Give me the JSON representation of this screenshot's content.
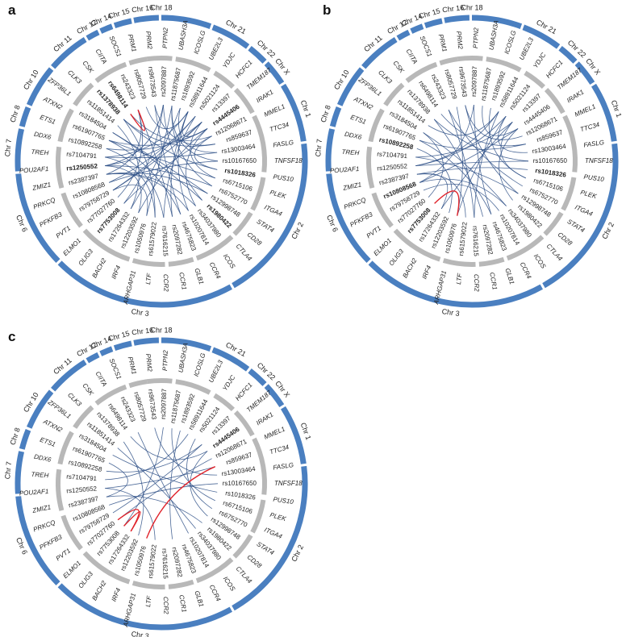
{
  "panels": [
    {
      "letter": "a",
      "bold_labels": [
        "rs6498114",
        "rs1378938",
        "rs1250552",
        "rs4445406",
        "rs1018326",
        "rs1980422",
        "rs7753008"
      ],
      "links": [
        [
          5,
          30
        ],
        [
          6,
          32
        ],
        [
          7,
          25
        ],
        [
          8,
          40
        ],
        [
          9,
          43
        ],
        [
          10,
          28
        ],
        [
          11,
          36
        ],
        [
          12,
          46
        ],
        [
          13,
          30
        ],
        [
          14,
          34
        ],
        [
          15,
          41
        ],
        [
          16,
          29
        ],
        [
          17,
          44
        ],
        [
          18,
          33
        ],
        [
          19,
          38
        ],
        [
          20,
          45
        ],
        [
          21,
          31
        ],
        [
          22,
          42
        ],
        [
          23,
          47
        ],
        [
          24,
          35
        ],
        [
          3,
          39
        ],
        [
          4,
          27
        ],
        [
          6,
          44
        ],
        [
          8,
          36
        ],
        [
          10,
          42
        ],
        [
          12,
          33
        ],
        [
          14,
          29
        ],
        [
          16,
          47
        ],
        [
          18,
          40
        ],
        [
          20,
          32
        ],
        [
          22,
          27
        ],
        [
          24,
          43
        ],
        [
          26,
          38
        ],
        [
          28,
          45
        ],
        [
          30,
          41
        ],
        [
          5,
          46
        ],
        [
          7,
          37
        ],
        [
          9,
          31
        ],
        [
          11,
          48
        ],
        [
          13,
          42
        ],
        [
          15,
          34
        ],
        [
          17,
          29
        ],
        [
          19,
          44
        ],
        [
          21,
          36
        ],
        [
          23,
          30
        ],
        [
          25,
          41
        ],
        [
          27,
          46
        ],
        [
          29,
          38
        ],
        [
          31,
          44
        ],
        [
          33,
          47
        ]
      ],
      "red_links": [
        [
          37,
          38
        ]
      ]
    },
    {
      "letter": "b",
      "bold_labels": [
        "rs10892258",
        "rs1018326",
        "rs10808568",
        "rs7753008"
      ],
      "links": [
        [
          5,
          31
        ],
        [
          6,
          28
        ],
        [
          7,
          40
        ],
        [
          8,
          33
        ],
        [
          9,
          45
        ],
        [
          10,
          36
        ],
        [
          11,
          29
        ],
        [
          12,
          43
        ],
        [
          13,
          38
        ],
        [
          14,
          31
        ],
        [
          15,
          47
        ],
        [
          16,
          34
        ],
        [
          17,
          27
        ],
        [
          18,
          41
        ],
        [
          19,
          36
        ],
        [
          20,
          44
        ],
        [
          21,
          29
        ],
        [
          22,
          39
        ],
        [
          23,
          32
        ],
        [
          24,
          46
        ],
        [
          3,
          35
        ],
        [
          4,
          30
        ],
        [
          6,
          42
        ],
        [
          8,
          37
        ],
        [
          10,
          30
        ],
        [
          12,
          46
        ],
        [
          14,
          40
        ],
        [
          16,
          28
        ],
        [
          18,
          33
        ],
        [
          20,
          38
        ],
        [
          22,
          45
        ],
        [
          24,
          29
        ],
        [
          26,
          34
        ],
        [
          28,
          41
        ],
        [
          30,
          44
        ]
      ],
      "red_links": [
        [
          22,
          25
        ]
      ]
    },
    {
      "letter": "c",
      "bold_labels": [
        "rs4445406"
      ],
      "links": [
        [
          5,
          32
        ],
        [
          7,
          26
        ],
        [
          9,
          40
        ],
        [
          11,
          34
        ],
        [
          13,
          45
        ],
        [
          15,
          29
        ],
        [
          17,
          38
        ],
        [
          19,
          43
        ],
        [
          21,
          30
        ],
        [
          23,
          36
        ],
        [
          25,
          41
        ],
        [
          27,
          46
        ],
        [
          29,
          33
        ],
        [
          31,
          44
        ],
        [
          6,
          37
        ],
        [
          8,
          30
        ],
        [
          10,
          28
        ],
        [
          12,
          42
        ],
        [
          14,
          47
        ],
        [
          16,
          35
        ]
      ],
      "red_links": [
        [
          24,
          26
        ],
        [
          24,
          25
        ],
        [
          8,
          22
        ]
      ]
    }
  ],
  "chromosomes": [
    "Chr 18",
    "Chr 21",
    "Chr 22",
    "Chr X",
    "Chr 1",
    "Chr 2",
    "Chr 3",
    "Chr 6",
    "Chr 7",
    "Chr 8",
    "Chr 10",
    "Chr 11",
    "Chr 12",
    "Chr 14",
    "Chr 15",
    "Chr 16"
  ],
  "genes": [
    "PTPN2",
    "UBASH3A",
    "ICOSLG",
    "UBE2L3",
    "YDJC",
    "HCFC1",
    "TMEM187",
    "IRAK1",
    "MMEL1",
    "TTC34",
    "FASLG",
    "TNFSF18",
    "PUS10",
    "PLEK",
    "ITGA4",
    "STAT4",
    "CD28",
    "CTLA4",
    "ICOS",
    "CCR4",
    "GLB1",
    "CCR1",
    "CCR2",
    "LTF",
    "ARHGAP31",
    "IRF4",
    "BACH2",
    "OLIG3",
    "ELMO1",
    "PVT1",
    "PFKFB3",
    "PRKCQ",
    "ZMIZ1",
    "POU2AF1",
    "TREH",
    "DDX6",
    "ETS1",
    "ATXN2",
    "ZFP36L1",
    "CLK3",
    "CSK",
    "CIITA",
    "SOCS1",
    "PRM1",
    "PRM2"
  ],
  "snps": [
    "rs2097887",
    "rs11875687",
    "rs1893592",
    "rs58911644",
    "rs5021124",
    "rs13397",
    "rs4445406",
    "rs12068671",
    "rs859637",
    "rs13003464",
    "rs10167650",
    "rs1018326",
    "rs6715106",
    "rs6752770",
    "rs12998748",
    "rs1980422",
    "rs34037980",
    "rs10207814",
    "rs4675823",
    "rs2097282",
    "rs7616215",
    "rs61579022",
    "rs1050976",
    "rs12203592",
    "rs17264332",
    "rs7753008",
    "rs77027760",
    "rs79758729",
    "rs10808568",
    "rs2387397",
    "rs1250552",
    "rs7104791",
    "rs10892258",
    "rs61907765",
    "rs3184504",
    "rs11851414",
    "rs1378938",
    "rs6498114",
    "rs243323",
    "rs8057729",
    "rs9673543"
  ]
}
